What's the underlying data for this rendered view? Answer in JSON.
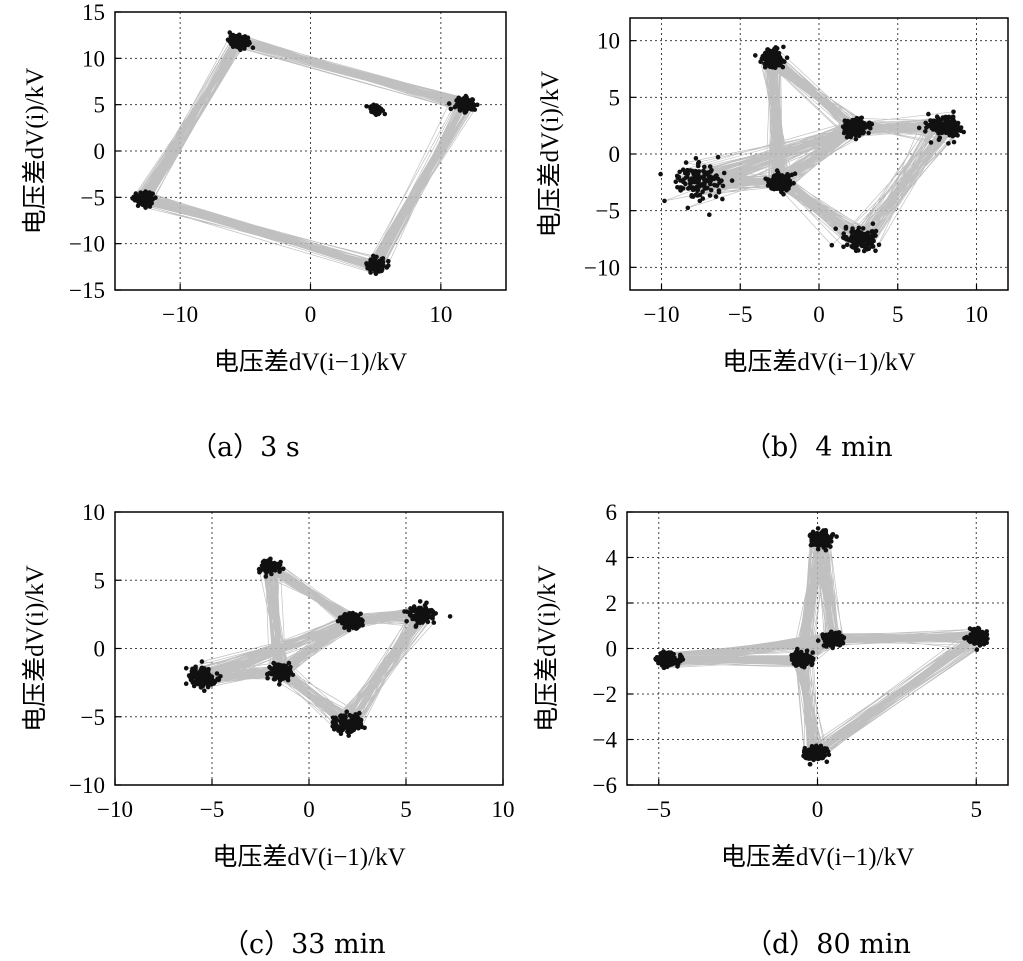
{
  "chart_data": [
    {
      "id": "a",
      "type": "scatter",
      "caption": "（a）3 s",
      "xlabel": "电压差dV(i−1)/kV",
      "ylabel": "电压差dV(i)/kV",
      "xlim": [
        -15,
        15
      ],
      "ylim": [
        -15,
        15
      ],
      "xticks": [
        -10,
        0,
        10
      ],
      "xtick_labels": [
        "−10",
        "0",
        "10"
      ],
      "yticks": [
        -15,
        -10,
        -5,
        0,
        5,
        10,
        15
      ],
      "ytick_labels": [
        "−15",
        "−10",
        "−5",
        "0",
        "5",
        "10",
        "15"
      ],
      "grid": true,
      "clusters": [
        {
          "x": -5.5,
          "y": 11.8,
          "spread": 0.6
        },
        {
          "x": 11.8,
          "y": 5.0,
          "spread": 0.6
        },
        {
          "x": 5.0,
          "y": -12.3,
          "spread": 0.6
        },
        {
          "x": -12.8,
          "y": -5.1,
          "spread": 0.6
        },
        {
          "x": 5.0,
          "y": 4.5,
          "spread": 0.4
        }
      ],
      "cycle": [
        0,
        1,
        2,
        3
      ]
    },
    {
      "id": "b",
      "type": "scatter",
      "caption": "（b）4 min",
      "xlabel": "电压差dV(i−1)/kV",
      "ylabel": "电压差dV(i)/kV",
      "xlim": [
        -12,
        12
      ],
      "ylim": [
        -12,
        12
      ],
      "xticks": [
        -10,
        -5,
        0,
        5,
        10
      ],
      "xtick_labels": [
        "−10",
        "−5",
        "0",
        "5",
        "10"
      ],
      "yticks": [
        -10,
        -5,
        0,
        5,
        10
      ],
      "ytick_labels": [
        "−10",
        "−5",
        "0",
        "5",
        "10"
      ],
      "grid": true,
      "clusters": [
        {
          "x": -2.5,
          "y": -2.5,
          "spread": 0.6
        },
        {
          "x": 2.3,
          "y": 2.3,
          "spread": 0.6
        },
        {
          "x": -3.0,
          "y": 8.5,
          "spread": 0.7
        },
        {
          "x": 8.0,
          "y": 2.5,
          "spread": 0.9
        },
        {
          "x": -7.5,
          "y": -2.5,
          "spread": 1.3
        },
        {
          "x": 2.5,
          "y": -7.5,
          "spread": 1.0
        }
      ],
      "cycle": [
        0,
        2,
        1,
        3,
        5,
        0,
        4,
        1
      ]
    },
    {
      "id": "c",
      "type": "scatter",
      "caption": "（c）33 min",
      "xlabel": "电压差dV(i−1)/kV",
      "ylabel": "电压差dV(i)/kV",
      "xlim": [
        -10,
        10
      ],
      "ylim": [
        -10,
        10
      ],
      "xticks": [
        -10,
        -5,
        0,
        5,
        10
      ],
      "xtick_labels": [
        "−10",
        "−5",
        "0",
        "5",
        "10"
      ],
      "yticks": [
        -10,
        -5,
        0,
        5,
        10
      ],
      "ytick_labels": [
        "−10",
        "−5",
        "0",
        "5",
        "10"
      ],
      "grid": true,
      "clusters": [
        {
          "x": -1.5,
          "y": -1.7,
          "spread": 0.45
        },
        {
          "x": 2.2,
          "y": 2.0,
          "spread": 0.45
        },
        {
          "x": -2.0,
          "y": 6.0,
          "spread": 0.4
        },
        {
          "x": 5.8,
          "y": 2.5,
          "spread": 0.6
        },
        {
          "x": -5.5,
          "y": -2.2,
          "spread": 0.7
        },
        {
          "x": 2.0,
          "y": -5.5,
          "spread": 0.6
        }
      ],
      "cycle": [
        0,
        2,
        1,
        3,
        5,
        0,
        4,
        1
      ]
    },
    {
      "id": "d",
      "type": "scatter",
      "caption": "（d）80 min",
      "xlabel": "电压差dV(i−1)/kV",
      "ylabel": "电压差dV(i)/kV",
      "xlim": [
        -6,
        6
      ],
      "ylim": [
        -6,
        6
      ],
      "xticks": [
        -5,
        0,
        5
      ],
      "xtick_labels": [
        "−5",
        "0",
        "5"
      ],
      "yticks": [
        -6,
        -4,
        -2,
        0,
        2,
        4,
        6
      ],
      "ytick_labels": [
        "−6",
        "−4",
        "−2",
        "0",
        "2",
        "4",
        "6"
      ],
      "grid": true,
      "clusters": [
        {
          "x": -0.5,
          "y": -0.5,
          "spread": 0.25
        },
        {
          "x": 0.5,
          "y": 0.4,
          "spread": 0.25
        },
        {
          "x": 0.1,
          "y": 4.8,
          "spread": 0.3
        },
        {
          "x": 5.0,
          "y": 0.5,
          "spread": 0.3
        },
        {
          "x": -4.7,
          "y": -0.5,
          "spread": 0.3
        },
        {
          "x": -0.1,
          "y": -4.6,
          "spread": 0.3
        }
      ],
      "cycle": [
        0,
        2,
        1,
        3,
        5,
        0,
        4,
        1
      ]
    }
  ],
  "colors": {
    "point": "#111111",
    "trace": "#b5b5b5",
    "grid": "#444444",
    "frame": "#000000"
  }
}
